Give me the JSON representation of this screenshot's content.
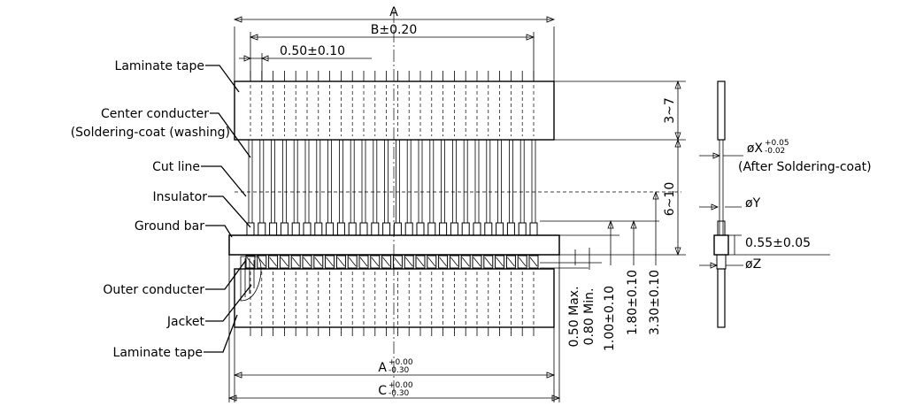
{
  "labels": {
    "laminate_tape_top": "Laminate tape",
    "center_conductor": "Center conducter",
    "soldering_coat": "(Soldering-coat (washing)",
    "cut_line": "Cut line",
    "insulator": "Insulator",
    "ground_bar": "Ground bar",
    "outer_conductor": "Outer conducter",
    "jacket": "Jacket",
    "laminate_tape_bottom": "Laminate tape"
  },
  "dimensions": {
    "a": "A",
    "b": "B±0.20",
    "pitch": "0.50±0.10",
    "tape_len": "3~7",
    "strip_len": "6~10",
    "d050": "0.50 Max.",
    "d080": "0.80 Min.",
    "d100": "1.00±0.10",
    "d180": "1.80±0.10",
    "d330": "3.30±0.10",
    "a_tol_base": "A",
    "a_tol_plus": "+0.00",
    "a_tol_minus": "-0.30",
    "c_tol_base": "C",
    "c_tol_plus": "+0.00",
    "c_tol_minus": "-0.30"
  },
  "side_view": {
    "phi_x_base": "øX",
    "phi_x_plus": "+0.05",
    "phi_x_minus": "-0.02",
    "after_coat": "(After Soldering-coat)",
    "phi_y": "øY",
    "bar_thick": "0.55±0.05",
    "phi_z": "øZ"
  }
}
